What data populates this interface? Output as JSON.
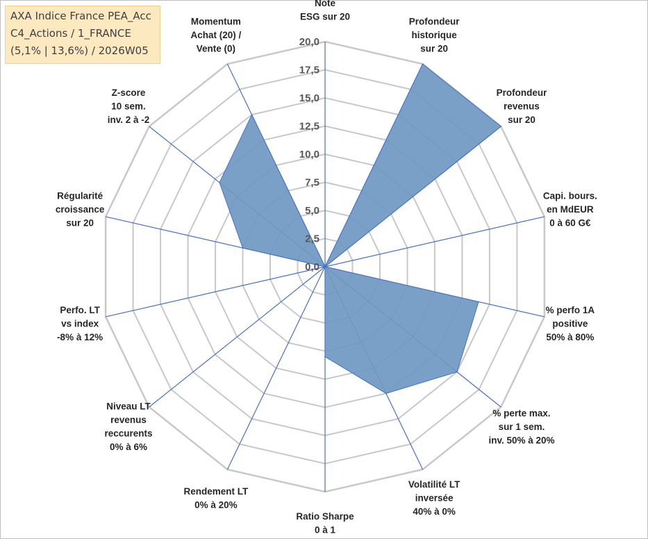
{
  "fund": {
    "line1": "AXA Indice France PEA_Acc",
    "line2": "C4_Actions / 1_FRANCE",
    "line3": "(5,1% | 13,6%) / 2026W05"
  },
  "colors": {
    "fill": "#7098c3",
    "stroke": "#4472c4",
    "grid": "#c8c8c8",
    "axis": "#4472c4",
    "text": "#262626",
    "tick": "#595959"
  },
  "chart_data": {
    "type": "radar",
    "title": "AXA Indice France PEA_Acc",
    "rlim": [
      0,
      20
    ],
    "ticks": [
      "0,0",
      "2,5",
      "5,0",
      "7,5",
      "10,0",
      "12,5",
      "15,0",
      "17,5",
      "20,0"
    ],
    "tick_values": [
      0,
      2.5,
      5,
      7.5,
      10,
      12.5,
      15,
      17.5,
      20
    ],
    "grid": true,
    "axes": [
      {
        "label": [
          "Note",
          "ESG sur 20"
        ],
        "value": 0
      },
      {
        "label": [
          "Profondeur",
          "historique",
          "sur 20"
        ],
        "value": 20
      },
      {
        "label": [
          "Profondeur",
          "revenus",
          "sur 20"
        ],
        "value": 20
      },
      {
        "label": [
          "Capi. bours.",
          "en MdEUR",
          "0 à 60 G€"
        ],
        "value": 0
      },
      {
        "label": [
          "% perfo 1A",
          "positive",
          "50% à 80%"
        ],
        "value": 14
      },
      {
        "label": [
          "% perte max.",
          "sur 1 sem.",
          "inv. 50% à 20%"
        ],
        "value": 15
      },
      {
        "label": [
          "Volatilité LT",
          "inversée",
          "40% à 0%"
        ],
        "value": 12.5
      },
      {
        "label": [
          "Ratio Sharpe",
          "0 à 1"
        ],
        "value": 8
      },
      {
        "label": [
          "Rendement LT",
          "0% à 20%"
        ],
        "value": 0
      },
      {
        "label": [
          "Niveau LT",
          "revenus",
          "reccurents",
          "0% à 6%"
        ],
        "value": 0
      },
      {
        "label": [
          "Perfo. LT",
          "vs index",
          "-8% à 12%"
        ],
        "value": 0
      },
      {
        "label": [
          "Régularité",
          "croissance",
          "sur 20"
        ],
        "value": 7.5
      },
      {
        "label": [
          "Z-score",
          "10 sem.",
          "inv. 2 à -2"
        ],
        "value": 12
      },
      {
        "label": [
          "Momentum",
          "Achat (20) /",
          "Vente (0)"
        ],
        "value": 15
      }
    ]
  }
}
